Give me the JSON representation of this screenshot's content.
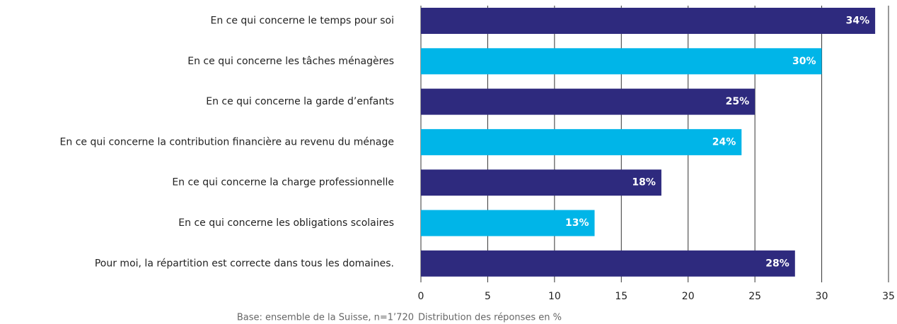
{
  "chart_data": {
    "type": "bar",
    "orientation": "horizontal",
    "categories": [
      "En ce qui concerne le temps pour soi",
      "En ce qui concerne les tâches ménagères",
      "En ce qui concerne la garde d’enfants",
      "En ce qui concerne la contribution financière au revenu du ménage",
      "En ce qui concerne la charge professionnelle",
      "En ce qui concerne les obligations scolaires",
      "Pour moi, la répartition est correcte dans tous les domaines."
    ],
    "values": [
      34,
      30,
      25,
      24,
      18,
      13,
      28
    ],
    "value_labels": [
      "34%",
      "30%",
      "25%",
      "24%",
      "18%",
      "13%",
      "28%"
    ],
    "colors": [
      "#2e2a7e",
      "#00b5e8",
      "#2e2a7e",
      "#00b5e8",
      "#2e2a7e",
      "#00b5e8",
      "#2e2a7e"
    ],
    "xlim": [
      0,
      35
    ],
    "xticks": [
      0,
      5,
      10,
      15,
      20,
      25,
      30,
      35
    ],
    "grid": true,
    "xlabel": "Distribution des réponses en %",
    "note": "Base: ensemble de la Suisse, n=1’720"
  }
}
